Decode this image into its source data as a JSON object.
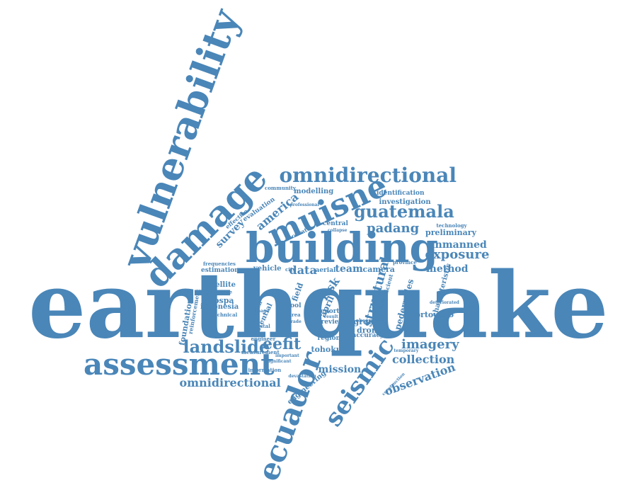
{
  "colors": {
    "word": "#4a86b8",
    "background": "#ffffff"
  },
  "words": [
    "earthquake",
    "vulnerability",
    "building",
    "damage",
    "muisne",
    "omnidirectional",
    "guatemala",
    "ecuador",
    "seismic",
    "assessment",
    "landslide",
    "omnidirectional",
    "eefit",
    "imagery",
    "collection",
    "observation",
    "mission",
    "exposure",
    "unmanned",
    "method",
    "padang",
    "preliminary",
    "america",
    "survey",
    "evaluation",
    "effective",
    "modelling",
    "investigation",
    "identification",
    "community",
    "professional",
    "technology",
    "central",
    "data",
    "team",
    "camera",
    "vehicle",
    "aerial",
    "field",
    "tool",
    "risk",
    "april",
    "foundation",
    "reinforcement",
    "satellite",
    "estimation",
    "frequencies",
    "extensive",
    "geospa",
    "indonesia",
    "geotechnical",
    "structural",
    "pedernales",
    "characteristic",
    "portoviejo",
    "ground",
    "drone",
    "accuracy",
    "tohoku",
    "region",
    "engineering",
    "report",
    "review",
    "result",
    "observed",
    "province",
    "potential",
    "reduction",
    "accurate",
    "collapse",
    "measurement",
    "information",
    "devastating",
    "construction",
    "insufficient",
    "deteriorated",
    "engineer",
    "area",
    "city",
    "grade",
    "coastal",
    "image",
    "temporary",
    "important",
    "significant",
    "capacity"
  ]
}
